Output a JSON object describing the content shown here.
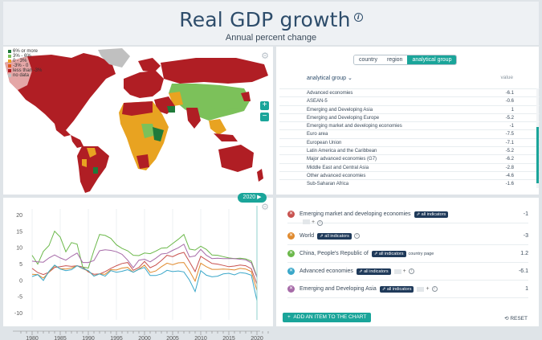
{
  "header": {
    "title": "Real GDP growth",
    "info": "i",
    "subtitle": "Annual percent change"
  },
  "map": {
    "legend": [
      {
        "label": "6% or more",
        "color": "#1f7a3a"
      },
      {
        "label": "3% - 6%",
        "color": "#7cc15a"
      },
      {
        "label": "0 - 3%",
        "color": "#e8a321"
      },
      {
        "label": "-3% - 0",
        "color": "#e05a1e"
      },
      {
        "label": "less than -3%",
        "color": "#b01e24"
      },
      {
        "label": "no data",
        "color": "#c0c0c0"
      }
    ],
    "zoom_in": "+",
    "zoom_out": "−",
    "year": "2020 ▶",
    "settings_icon": "⚙"
  },
  "list": {
    "tabs": [
      {
        "label": "country",
        "active": false
      },
      {
        "label": "region",
        "active": false
      },
      {
        "label": "analytical group",
        "active": true
      }
    ],
    "group_label": "analytical group ⌄",
    "value_label": "value",
    "rows": [
      {
        "name": "Advanced economies",
        "value": "-6.1"
      },
      {
        "name": "ASEAN-5",
        "value": "-0.6"
      },
      {
        "name": "Emerging and Developing Asia",
        "value": "1"
      },
      {
        "name": "Emerging and Developing Europe",
        "value": "-5.2"
      },
      {
        "name": "Emerging market and developing economies",
        "value": "-1"
      },
      {
        "name": "Euro area",
        "value": "-7.5"
      },
      {
        "name": "European Union",
        "value": "-7.1"
      },
      {
        "name": "Latin America and the Caribbean",
        "value": "-5.2"
      },
      {
        "name": "Major advanced economies (G7)",
        "value": "-6.2"
      },
      {
        "name": "Middle East and Central Asia",
        "value": "-2.8"
      },
      {
        "name": "Other advanced economies",
        "value": "-4.6"
      },
      {
        "name": "Sub-Saharan Africa",
        "value": "-1.6"
      }
    ]
  },
  "series_panel": {
    "items": [
      {
        "name": "Emerging market and developing economies",
        "value": "-1",
        "color": "#c8524f",
        "badge": "all indicators",
        "extras": true,
        "page_link": ""
      },
      {
        "name": "World",
        "value": "-3",
        "color": "#e08a2e",
        "badge": "all indicators",
        "extras": false,
        "page_link": ""
      },
      {
        "name": "China, People's Republic of",
        "value": "1.2",
        "color": "#6bb84a",
        "badge": "all indicators",
        "extras": false,
        "page_link": "country page"
      },
      {
        "name": "Advanced economies",
        "value": "-6.1",
        "color": "#3aa7c9",
        "badge": "all indicators",
        "extras": true,
        "page_link": ""
      },
      {
        "name": "Emerging and Developing Asia",
        "value": "1",
        "color": "#a66ba8",
        "badge": "all indicators",
        "extras": true,
        "page_link": ""
      }
    ],
    "add_label": "ADD AN ITEM TO THE CHART",
    "add_icon": "+",
    "reset_label": "⟲ RESET",
    "remove_icon": "✕",
    "badge_icon": "⇗"
  },
  "chart_data": {
    "type": "line",
    "x": [
      1980,
      1981,
      1982,
      1983,
      1984,
      1985,
      1986,
      1987,
      1988,
      1989,
      1990,
      1991,
      1992,
      1993,
      1994,
      1995,
      1996,
      1997,
      1998,
      1999,
      2000,
      2001,
      2002,
      2003,
      2004,
      2005,
      2006,
      2007,
      2008,
      2009,
      2010,
      2011,
      2012,
      2013,
      2014,
      2015,
      2016,
      2017,
      2018,
      2019,
      2020
    ],
    "series": [
      {
        "name": "Emerging market and developing economies",
        "color": "#c8524f",
        "values": [
          3.8,
          2.5,
          1.9,
          2.6,
          4.1,
          4.3,
          4.6,
          4.4,
          4.6,
          4.2,
          2.7,
          2.0,
          2.1,
          2.8,
          3.8,
          4.6,
          5.3,
          5.6,
          3.2,
          4.1,
          5.9,
          4.0,
          4.8,
          6.2,
          7.8,
          7.4,
          8.2,
          8.7,
          5.8,
          2.8,
          7.5,
          6.4,
          5.3,
          5.1,
          4.7,
          4.3,
          4.5,
          4.8,
          4.6,
          3.7,
          -1.0
        ]
      },
      {
        "name": "World",
        "color": "#e08a2e",
        "values": [
          2.0,
          1.9,
          0.8,
          2.6,
          4.6,
          3.7,
          3.6,
          3.9,
          4.6,
          3.7,
          3.0,
          1.5,
          2.1,
          2.0,
          3.4,
          3.3,
          3.9,
          4.1,
          2.6,
          3.6,
          4.8,
          2.5,
          3.0,
          4.3,
          5.4,
          4.9,
          5.5,
          5.6,
          3.0,
          -0.1,
          5.4,
          4.3,
          3.5,
          3.5,
          3.6,
          3.5,
          3.3,
          3.8,
          3.6,
          2.8,
          -3.0
        ]
      },
      {
        "name": "China, People's Republic of",
        "color": "#6bb84a",
        "values": [
          7.8,
          5.1,
          9.0,
          10.8,
          15.2,
          13.4,
          8.9,
          11.7,
          11.2,
          4.2,
          3.9,
          9.3,
          14.2,
          13.9,
          13.0,
          11.0,
          9.9,
          9.2,
          7.8,
          7.7,
          8.5,
          8.3,
          9.1,
          10.0,
          10.1,
          11.4,
          12.7,
          14.2,
          9.7,
          9.4,
          10.6,
          9.6,
          7.9,
          7.8,
          7.4,
          7.0,
          6.8,
          6.9,
          6.7,
          6.0,
          1.2
        ]
      },
      {
        "name": "Advanced economies",
        "color": "#3aa7c9",
        "values": [
          1.3,
          1.9,
          0.1,
          2.9,
          4.8,
          3.6,
          3.1,
          3.4,
          4.6,
          3.8,
          3.1,
          1.4,
          2.1,
          1.4,
          3.1,
          2.6,
          2.9,
          3.4,
          2.6,
          3.5,
          4.1,
          1.6,
          1.6,
          2.1,
          3.2,
          2.8,
          3.0,
          2.7,
          0.2,
          -3.3,
          3.1,
          1.7,
          1.2,
          1.4,
          2.1,
          2.3,
          1.8,
          2.5,
          2.3,
          1.7,
          -6.1
        ]
      },
      {
        "name": "Emerging and Developing Asia",
        "color": "#a66ba8",
        "values": [
          6.0,
          5.8,
          5.7,
          7.0,
          7.9,
          7.0,
          6.3,
          7.5,
          8.5,
          5.6,
          5.6,
          6.2,
          9.2,
          9.5,
          9.3,
          8.9,
          8.1,
          6.3,
          4.0,
          6.3,
          6.6,
          5.8,
          6.9,
          8.2,
          8.4,
          9.3,
          10.1,
          11.2,
          7.3,
          7.6,
          9.6,
          7.8,
          6.8,
          6.9,
          6.8,
          6.8,
          6.8,
          6.6,
          6.4,
          5.5,
          1.0
        ]
      }
    ],
    "ylim": [
      -12,
      22
    ],
    "yticks": [
      -10,
      -5,
      0,
      5,
      10,
      15,
      20
    ],
    "xticks": [
      1980,
      1985,
      1990,
      1995,
      2000,
      2005,
      2010,
      2015,
      2020
    ],
    "grid": true
  }
}
